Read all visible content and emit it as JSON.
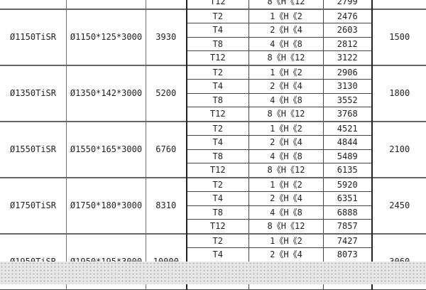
{
  "table": {
    "partial_top_row": {
      "type": "T12",
      "range": "8《H《12",
      "value": "2799"
    },
    "groups": [
      {
        "model": "Ø1150TiSR",
        "spec": "Ø1150*125*3000",
        "weight": "3930",
        "last": "1500",
        "rows": [
          {
            "type": "T2",
            "range": "1《H《2",
            "value": "2476"
          },
          {
            "type": "T4",
            "range": "2《H《4",
            "value": "2603"
          },
          {
            "type": "T8",
            "range": "4《H《8",
            "value": "2812"
          },
          {
            "type": "T12",
            "range": "8《H《12",
            "value": "3122"
          }
        ]
      },
      {
        "model": "Ø1350TiSR",
        "spec": "Ø1350*142*3000",
        "weight": "5200",
        "last": "1800",
        "rows": [
          {
            "type": "T2",
            "range": "1《H《2",
            "value": "2906"
          },
          {
            "type": "T4",
            "range": "2《H《4",
            "value": "3130"
          },
          {
            "type": "T8",
            "range": "4《H《8",
            "value": "3552"
          },
          {
            "type": "T12",
            "range": "8《H《12",
            "value": "3768"
          }
        ]
      },
      {
        "model": "Ø1550TiSR",
        "spec": "Ø1550*165*3000",
        "weight": "6760",
        "last": "2100",
        "rows": [
          {
            "type": "T2",
            "range": "1《H《2",
            "value": "4521"
          },
          {
            "type": "T4",
            "range": "2《H《4",
            "value": "4844"
          },
          {
            "type": "T8",
            "range": "4《H《8",
            "value": "5489"
          },
          {
            "type": "T12",
            "range": "8《H《12",
            "value": "6135"
          }
        ]
      },
      {
        "model": "Ø1750TiSR",
        "spec": "Ø1750*180*3000",
        "weight": "8310",
        "last": "2450",
        "rows": [
          {
            "type": "T2",
            "range": "1《H《2",
            "value": "5920"
          },
          {
            "type": "T4",
            "range": "2《H《4",
            "value": "6351"
          },
          {
            "type": "T8",
            "range": "4《H《8",
            "value": "6888"
          },
          {
            "type": "T12",
            "range": "8《H《12",
            "value": "7857"
          }
        ]
      },
      {
        "model": "Ø1950TiSR",
        "spec": "Ø1950*195*3000",
        "weight": "10000",
        "last": "3060",
        "rows": [
          {
            "type": "T2",
            "range": "1《H《2",
            "value": "7427"
          },
          {
            "type": "T4",
            "range": "2《H《4",
            "value": "8073"
          },
          {
            "type": "",
            "range": "",
            "value": ""
          },
          {
            "type": "",
            "range": "",
            "value": ""
          }
        ]
      }
    ]
  }
}
